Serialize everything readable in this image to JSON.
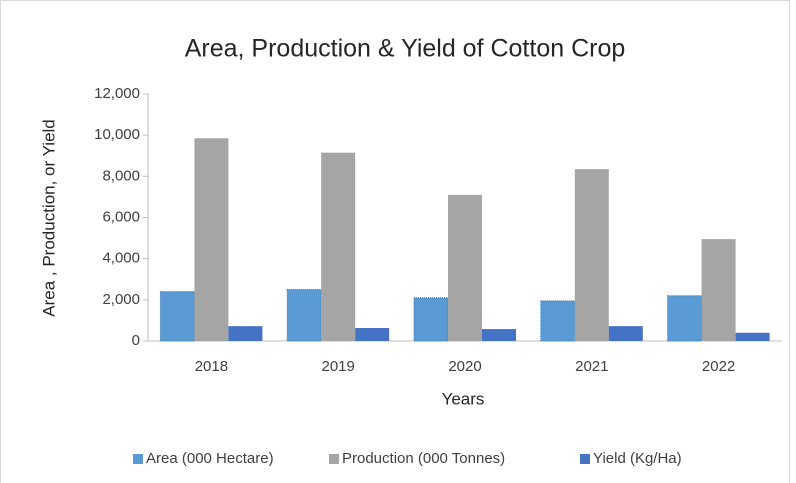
{
  "chart_data": {
    "type": "bar",
    "title": "Area, Production & Yield of Cotton Crop",
    "x_label": "Years",
    "y_label": "Area , Production, or Yield",
    "categories": [
      "2018",
      "2019",
      "2020",
      "2021",
      "2022"
    ],
    "series": [
      {
        "name": "Area (000 Hectare)",
        "color": "#5b9bd5",
        "values": [
          2400,
          2500,
          2100,
          1950,
          2200
        ]
      },
      {
        "name": "Production (000 Tonnes)",
        "color": "#a5a5a5",
        "values": [
          9850,
          9150,
          7100,
          8350,
          4950
        ]
      },
      {
        "name": "Yield (Kg/Ha)",
        "color": "#4472c4",
        "values": [
          720,
          630,
          580,
          720,
          400
        ]
      }
    ],
    "ylim": [
      0,
      12000
    ],
    "yticks": [
      0,
      {
        "value": 2000,
        "label": "2,000"
      },
      {
        "value": 4000,
        "label": "4,000"
      },
      {
        "value": 6000,
        "label": "6,000"
      },
      {
        "value": 8000,
        "label": "8,000"
      },
      {
        "value": 10000,
        "label": "10,000"
      },
      {
        "value": 12000,
        "label": "12,000"
      }
    ],
    "grid": false,
    "legend": "bottom"
  }
}
